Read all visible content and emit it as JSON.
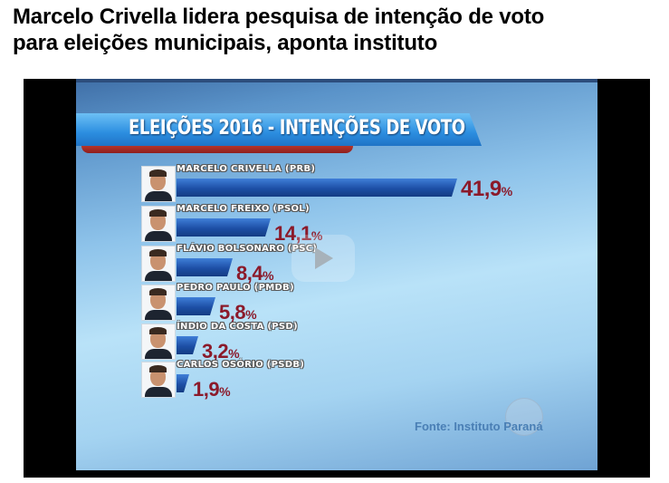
{
  "headline": {
    "line1": "Marcelo Crivella lidera pesquisa de intenção de voto",
    "line2": "para eleições municipais, aponta instituto"
  },
  "video": {
    "play_button": "play-icon",
    "source_text": "Fonte: Instituto Paraná"
  },
  "chart_data": {
    "type": "bar",
    "orientation": "horizontal",
    "title": "ELEIÇÕES 2016 - INTENÇÕES DE VOTO",
    "categories": [
      "MARCELO CRIVELLA (PRB)",
      "MARCELO FREIXO (PSOL)",
      "FLÁVIO BOLSONARO (PSC)",
      "PEDRO PAULO (PMDB)",
      "ÍNDIO DA COSTA (PSD)",
      "CARLOS OSÓRIO (PSDB)"
    ],
    "values": [
      41.9,
      14.1,
      8.4,
      5.8,
      3.2,
      1.9
    ],
    "labels": [
      "41,9",
      "14,1",
      "8,4",
      "5,8",
      "3,2",
      "1,9"
    ],
    "unit": "%",
    "source": "Fonte: Instituto Paraná",
    "grid": false,
    "legend": "none",
    "colors": {
      "bar": "#1d4fa6",
      "value": "#8b1a2a",
      "title_banner": "#2c8ee0"
    }
  }
}
